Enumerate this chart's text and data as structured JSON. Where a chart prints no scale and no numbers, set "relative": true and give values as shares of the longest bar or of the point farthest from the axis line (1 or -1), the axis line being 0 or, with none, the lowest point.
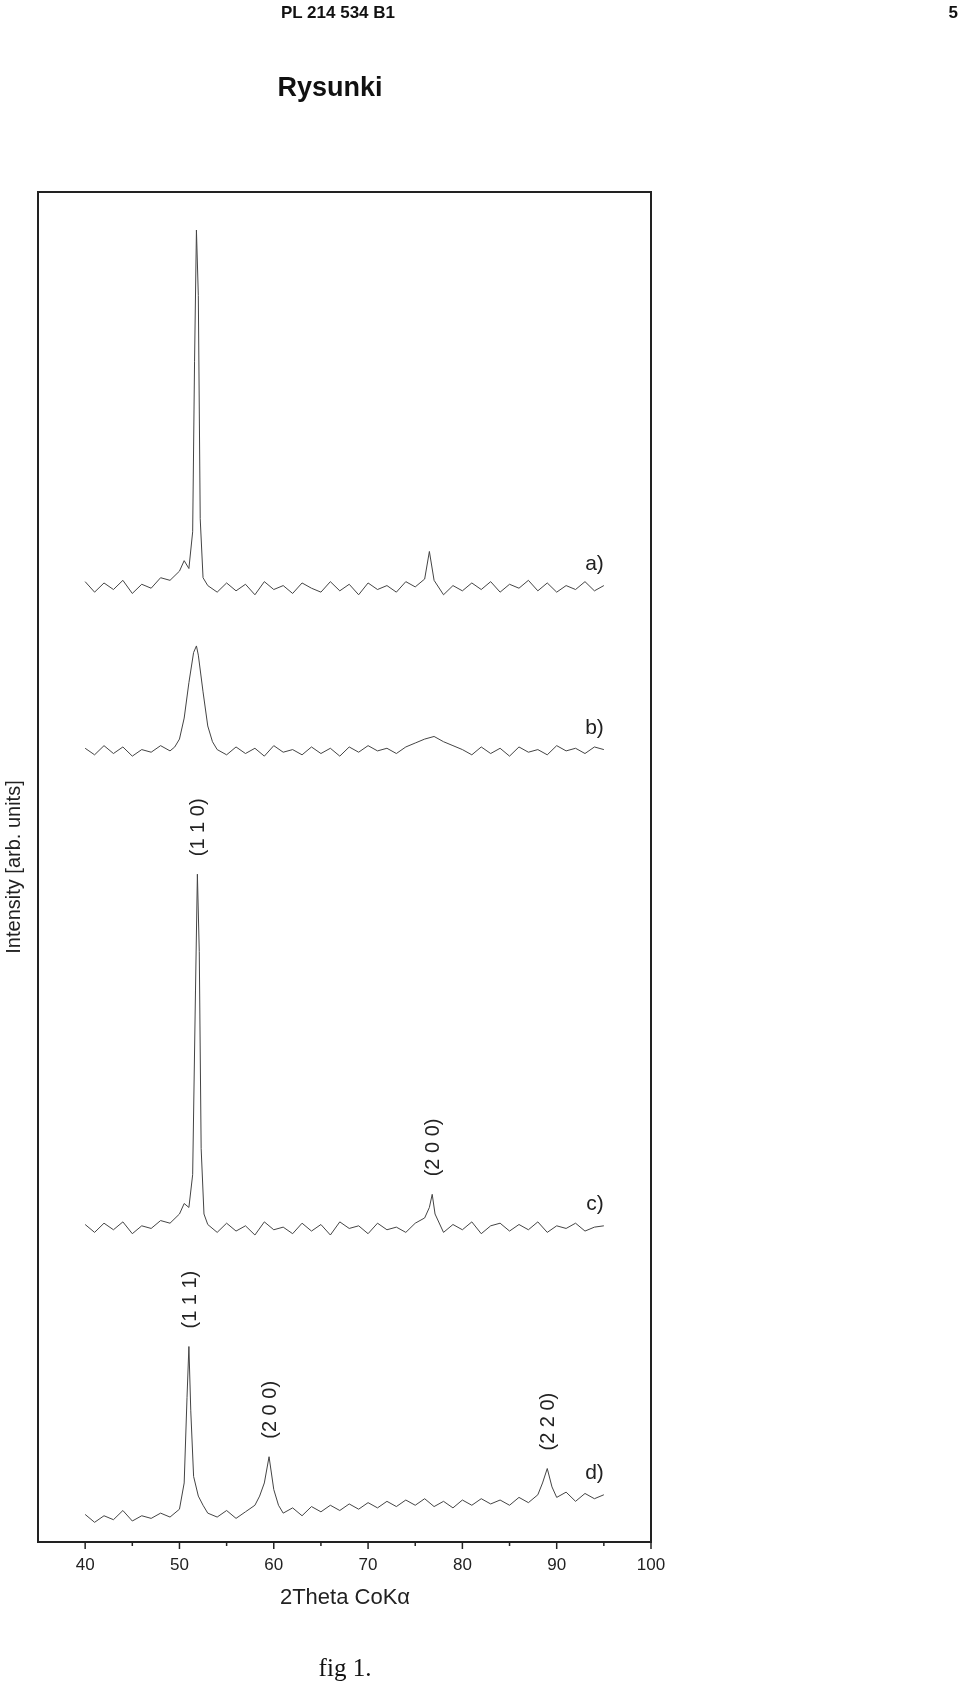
{
  "chart_data": {
    "type": "line",
    "title": "Rysunki",
    "xlabel": "2Theta CoKα",
    "ylabel": "Intensity [arb. units]",
    "relative": true,
    "xlim": [
      35,
      100
    ],
    "xticks": [
      40,
      {
        "value": 45,
        "label": null
      },
      50,
      {
        "value": 55,
        "label": null
      },
      60,
      {
        "value": 65,
        "label": null
      },
      70,
      {
        "value": 75,
        "label": null
      },
      80,
      {
        "value": 85,
        "label": null
      },
      90,
      {
        "value": 95,
        "label": null
      },
      100
    ],
    "grid": false,
    "line_style": "solid",
    "annotations": [
      "PL 214 534 B1",
      "5",
      "fig 1.",
      {
        "text": "(1 1 0)",
        "x": 51.9,
        "y": 0.509
      },
      {
        "text": "(2 0 0)",
        "x": 76.8,
        "y": 0.265
      },
      {
        "text": "(1 1 1)",
        "x": 51,
        "y": 0.149
      },
      {
        "text": "(2 0 0)",
        "x": 59.5,
        "y": 0.065
      },
      {
        "text": "(2 2 0)",
        "x": 89,
        "y": 0.056
      }
    ],
    "series": [
      {
        "name": "a)",
        "color": "#444444",
        "x": [
          40,
          41,
          42,
          43,
          44,
          45,
          46,
          47,
          48,
          49,
          50,
          50.5,
          51,
          51.4,
          51.6,
          51.8,
          52,
          52.2,
          52.5,
          53,
          54,
          55,
          56,
          57,
          58,
          59,
          60,
          61,
          62,
          63,
          64,
          65,
          66,
          67,
          68,
          69,
          70,
          71,
          72,
          73,
          74,
          75,
          76,
          76.5,
          77,
          78,
          79,
          80,
          81,
          82,
          83,
          84,
          85,
          86,
          87,
          88,
          89,
          90,
          91,
          92,
          93,
          94,
          95
        ],
        "values": [
          0.732,
          0.724,
          0.731,
          0.726,
          0.733,
          0.723,
          0.73,
          0.727,
          0.735,
          0.733,
          0.74,
          0.748,
          0.742,
          0.77,
          0.9,
          1.0,
          0.95,
          0.78,
          0.735,
          0.729,
          0.724,
          0.731,
          0.725,
          0.73,
          0.722,
          0.732,
          0.726,
          0.729,
          0.723,
          0.731,
          0.727,
          0.724,
          0.732,
          0.725,
          0.73,
          0.722,
          0.731,
          0.726,
          0.729,
          0.724,
          0.732,
          0.728,
          0.734,
          0.755,
          0.733,
          0.722,
          0.729,
          0.725,
          0.731,
          0.726,
          0.732,
          0.724,
          0.73,
          0.727,
          0.733,
          0.725,
          0.731,
          0.724,
          0.729,
          0.726,
          0.732,
          0.725,
          0.729
        ]
      },
      {
        "name": "b)",
        "color": "#444444",
        "x": [
          40,
          41,
          42,
          43,
          44,
          45,
          46,
          47,
          48,
          49,
          49.5,
          50,
          50.5,
          51,
          51.5,
          51.8,
          52,
          52.5,
          53,
          53.5,
          54,
          55,
          56,
          57,
          58,
          59,
          60,
          61,
          62,
          63,
          64,
          65,
          66,
          67,
          68,
          69,
          70,
          71,
          72,
          73,
          74,
          75,
          76,
          77,
          78,
          79,
          80,
          81,
          82,
          83,
          84,
          85,
          86,
          87,
          88,
          89,
          90,
          91,
          92,
          93,
          94,
          95
        ],
        "values": [
          0.605,
          0.6,
          0.607,
          0.601,
          0.606,
          0.599,
          0.604,
          0.602,
          0.607,
          0.603,
          0.606,
          0.612,
          0.628,
          0.655,
          0.678,
          0.683,
          0.676,
          0.648,
          0.622,
          0.61,
          0.604,
          0.6,
          0.606,
          0.601,
          0.605,
          0.599,
          0.607,
          0.602,
          0.604,
          0.6,
          0.606,
          0.601,
          0.605,
          0.599,
          0.606,
          0.602,
          0.607,
          0.603,
          0.605,
          0.601,
          0.606,
          0.609,
          0.612,
          0.614,
          0.61,
          0.607,
          0.604,
          0.6,
          0.606,
          0.601,
          0.605,
          0.599,
          0.606,
          0.602,
          0.604,
          0.6,
          0.607,
          0.603,
          0.605,
          0.601,
          0.606,
          0.604
        ]
      },
      {
        "name": "c)",
        "color": "#444444",
        "x": [
          40,
          41,
          42,
          43,
          44,
          45,
          46,
          47,
          48,
          49,
          50,
          50.5,
          51,
          51.4,
          51.7,
          51.9,
          52.1,
          52.3,
          52.6,
          53,
          54,
          55,
          56,
          57,
          58,
          59,
          60,
          61,
          62,
          63,
          64,
          65,
          66,
          67,
          68,
          69,
          70,
          71,
          72,
          73,
          74,
          75,
          76,
          76.5,
          76.8,
          77.1,
          78,
          79,
          80,
          81,
          82,
          83,
          84,
          85,
          86,
          87,
          88,
          89,
          90,
          91,
          92,
          93,
          94,
          95
        ],
        "values": [
          0.242,
          0.236,
          0.243,
          0.238,
          0.244,
          0.235,
          0.241,
          0.239,
          0.245,
          0.243,
          0.25,
          0.258,
          0.255,
          0.28,
          0.42,
          0.509,
          0.45,
          0.3,
          0.25,
          0.242,
          0.236,
          0.243,
          0.237,
          0.241,
          0.234,
          0.244,
          0.238,
          0.24,
          0.235,
          0.243,
          0.237,
          0.242,
          0.234,
          0.244,
          0.239,
          0.241,
          0.235,
          0.243,
          0.238,
          0.24,
          0.236,
          0.243,
          0.247,
          0.255,
          0.265,
          0.25,
          0.236,
          0.242,
          0.238,
          0.244,
          0.235,
          0.241,
          0.243,
          0.237,
          0.242,
          0.238,
          0.244,
          0.236,
          0.241,
          0.239,
          0.243,
          0.237,
          0.24,
          0.241
        ]
      },
      {
        "name": "d)",
        "color": "#444444",
        "x": [
          40,
          41,
          42,
          43,
          44,
          45,
          46,
          47,
          48,
          49,
          50,
          50.5,
          50.8,
          51,
          51.2,
          51.5,
          52,
          52.5,
          53,
          54,
          55,
          56,
          57,
          58,
          58.5,
          59,
          59.5,
          60,
          60.5,
          61,
          62,
          63,
          64,
          65,
          66,
          67,
          68,
          69,
          70,
          71,
          72,
          73,
          74,
          75,
          76,
          77,
          78,
          79,
          80,
          81,
          82,
          83,
          84,
          85,
          86,
          87,
          88,
          88.5,
          89,
          89.5,
          90,
          91,
          92,
          93,
          94,
          95
        ],
        "values": [
          0.021,
          0.015,
          0.02,
          0.017,
          0.024,
          0.016,
          0.02,
          0.018,
          0.022,
          0.019,
          0.025,
          0.045,
          0.11,
          0.149,
          0.1,
          0.05,
          0.035,
          0.028,
          0.022,
          0.019,
          0.024,
          0.018,
          0.023,
          0.028,
          0.035,
          0.045,
          0.065,
          0.04,
          0.028,
          0.022,
          0.026,
          0.02,
          0.027,
          0.023,
          0.028,
          0.024,
          0.029,
          0.025,
          0.03,
          0.026,
          0.031,
          0.027,
          0.032,
          0.028,
          0.033,
          0.027,
          0.031,
          0.026,
          0.032,
          0.028,
          0.033,
          0.029,
          0.032,
          0.028,
          0.034,
          0.03,
          0.036,
          0.045,
          0.056,
          0.042,
          0.034,
          0.038,
          0.031,
          0.037,
          0.033,
          0.036
        ]
      }
    ]
  }
}
